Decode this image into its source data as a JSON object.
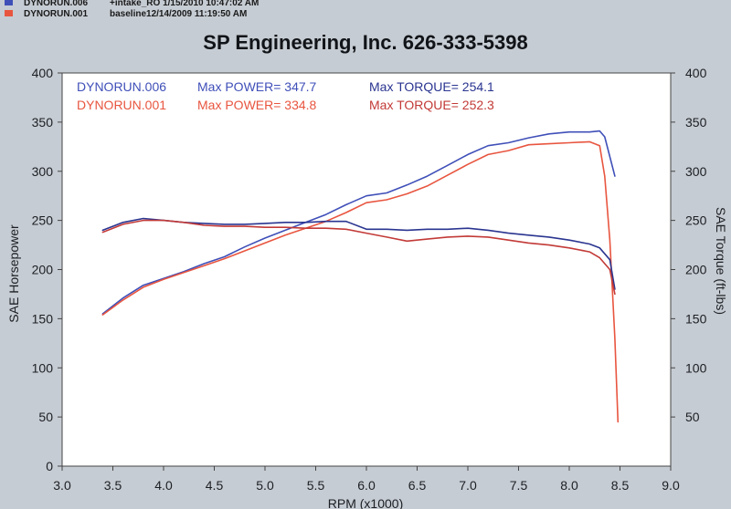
{
  "header": {
    "runs": [
      {
        "name": "DYNORUN.006",
        "desc": "+intake_RO  1/15/2010 10:47:02 AM",
        "color": "#3f4fb8"
      },
      {
        "name": "DYNORUN.001",
        "desc": "baseline12/14/2009 11:19:50 AM",
        "color": "#e8553f"
      }
    ]
  },
  "chart_data": {
    "type": "line",
    "title": "SP Engineering, Inc. 626-333-5398",
    "xlabel": "RPM (x1000)",
    "ylabel": "SAE Horsepower",
    "y2label": "SAE Torque (ft-lbs)",
    "xlim": [
      3.0,
      9.0
    ],
    "ylim": [
      0,
      400
    ],
    "y2lim": [
      0,
      400
    ],
    "x_ticks": [
      "3.0",
      "3.5",
      "4.0",
      "4.5",
      "5.0",
      "5.5",
      "6.0",
      "6.5",
      "7.0",
      "7.5",
      "8.0",
      "8.5",
      "9.0"
    ],
    "y_ticks": [
      "0",
      "50",
      "100",
      "150",
      "200",
      "250",
      "300",
      "350",
      "400"
    ],
    "y2_ticks": [
      "50",
      "100",
      "150",
      "200",
      "250",
      "300",
      "350",
      "400"
    ],
    "grid": false,
    "legend": [
      {
        "run": "DYNORUN.006",
        "power_label": "Max POWER= 347.7",
        "torque_label": "Max TORQUE= 254.1",
        "color": "#3f4fb8",
        "torque_color": "#2a3590"
      },
      {
        "run": "DYNORUN.001",
        "power_label": "Max POWER= 334.8",
        "torque_label": "Max TORQUE= 252.3",
        "color": "#e8553f",
        "torque_color": "#c23a37"
      }
    ],
    "series": [
      {
        "name": "DYNORUN.006",
        "kind": "power",
        "color": "#3f4fb8",
        "x": [
          3.4,
          3.6,
          3.8,
          4.0,
          4.2,
          4.4,
          4.6,
          4.8,
          5.0,
          5.2,
          5.4,
          5.6,
          5.8,
          6.0,
          6.2,
          6.4,
          6.6,
          6.8,
          7.0,
          7.2,
          7.4,
          7.6,
          7.8,
          8.0,
          8.2,
          8.3,
          8.35,
          8.45
        ],
        "y": [
          155,
          171,
          184,
          191,
          198,
          206,
          213,
          223,
          232,
          240,
          248,
          256,
          266,
          275,
          278,
          286,
          295,
          306,
          317,
          326,
          329,
          334,
          338,
          340,
          340,
          341,
          335,
          295
        ]
      },
      {
        "name": "DYNORUN.001",
        "kind": "power",
        "color": "#e8553f",
        "x": [
          3.4,
          3.6,
          3.8,
          4.0,
          4.2,
          4.4,
          4.6,
          4.8,
          5.0,
          5.2,
          5.4,
          5.6,
          5.8,
          6.0,
          6.2,
          6.4,
          6.6,
          6.8,
          7.0,
          7.2,
          7.4,
          7.6,
          7.8,
          8.0,
          8.2,
          8.3,
          8.35,
          8.4,
          8.45,
          8.48
        ],
        "y": [
          154,
          169,
          182,
          190,
          197,
          204,
          211,
          219,
          227,
          235,
          242,
          249,
          258,
          268,
          271,
          277,
          285,
          296,
          307,
          317,
          321,
          327,
          328,
          329,
          330,
          326,
          295,
          230,
          130,
          45
        ]
      },
      {
        "name": "DYNORUN.006",
        "kind": "torque",
        "color": "#2a3590",
        "x": [
          3.4,
          3.6,
          3.8,
          4.0,
          4.2,
          4.4,
          4.6,
          4.8,
          5.0,
          5.2,
          5.4,
          5.6,
          5.8,
          6.0,
          6.2,
          6.4,
          6.6,
          6.8,
          7.0,
          7.2,
          7.4,
          7.6,
          7.8,
          8.0,
          8.2,
          8.3,
          8.4,
          8.45
        ],
        "y": [
          240,
          248,
          252,
          250,
          248,
          247,
          246,
          246,
          247,
          248,
          248,
          249,
          249,
          241,
          241,
          240,
          241,
          241,
          242,
          240,
          237,
          235,
          233,
          230,
          226,
          222,
          210,
          180
        ]
      },
      {
        "name": "DYNORUN.001",
        "kind": "torque",
        "color": "#c23a37",
        "x": [
          3.4,
          3.6,
          3.8,
          4.0,
          4.2,
          4.4,
          4.6,
          4.8,
          5.0,
          5.2,
          5.4,
          5.6,
          5.8,
          6.0,
          6.2,
          6.4,
          6.6,
          6.8,
          7.0,
          7.2,
          7.4,
          7.6,
          7.8,
          8.0,
          8.2,
          8.3,
          8.4,
          8.45
        ],
        "y": [
          238,
          246,
          250,
          250,
          248,
          245,
          244,
          244,
          243,
          243,
          242,
          242,
          241,
          237,
          233,
          229,
          231,
          233,
          234,
          233,
          230,
          227,
          225,
          222,
          218,
          212,
          200,
          175
        ]
      }
    ]
  }
}
